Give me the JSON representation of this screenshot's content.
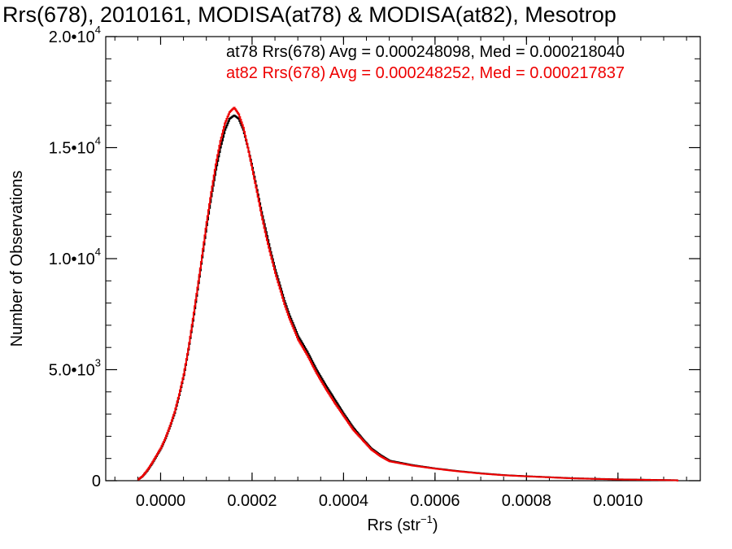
{
  "chart_data": {
    "type": "line",
    "step": true,
    "title": "Rrs(678), 2010161, MODISA(at78) & MODISA(at82), Mesotrop",
    "xlabel_main": "Rrs (str",
    "xlabel_sup": "−1",
    "xlabel_close": ")",
    "ylabel": "Number of Observations",
    "xlim": [
      -0.00012,
      0.00118
    ],
    "ylim": [
      0,
      20000
    ],
    "grid": false,
    "x_ticks": [
      {
        "value": 0.0,
        "label": "0.0000"
      },
      {
        "value": 0.0002,
        "label": "0.0002"
      },
      {
        "value": 0.0004,
        "label": "0.0004"
      },
      {
        "value": 0.0006,
        "label": "0.0006"
      },
      {
        "value": 0.0008,
        "label": "0.0008"
      },
      {
        "value": 0.001,
        "label": "0.0010"
      }
    ],
    "y_ticks": [
      {
        "value": 0,
        "mant": "0",
        "exp": ""
      },
      {
        "value": 5000,
        "mant": "5.0•10",
        "exp": "3"
      },
      {
        "value": 10000,
        "mant": "1.0•10",
        "exp": "4"
      },
      {
        "value": 15000,
        "mant": "1.5•10",
        "exp": "4"
      },
      {
        "value": 20000,
        "mant": "2.0•10",
        "exp": "4"
      }
    ],
    "series": [
      {
        "name": "at78",
        "color": "#000000",
        "stats": "at78 Rrs(678) Avg = 0.000248098, Med = 0.000218040",
        "x": [
          -5e-05,
          -4e-05,
          -3e-05,
          -2e-05,
          -1e-05,
          0.0,
          1e-05,
          2e-05,
          3e-05,
          4e-05,
          5e-05,
          6e-05,
          7e-05,
          8e-05,
          9e-05,
          0.0001,
          0.00011,
          0.00012,
          0.00013,
          0.00014,
          0.00015,
          0.00016,
          0.00017,
          0.00018,
          0.00019,
          0.0002,
          0.00021,
          0.00022,
          0.00023,
          0.00024,
          0.00025,
          0.00026,
          0.00027,
          0.00028,
          0.00029,
          0.0003,
          0.00032,
          0.00034,
          0.00036,
          0.00038,
          0.0004,
          0.00042,
          0.00044,
          0.00046,
          0.00048,
          0.0005,
          0.00055,
          0.0006,
          0.00065,
          0.0007,
          0.00075,
          0.0008,
          0.0009,
          0.001,
          0.00113
        ],
        "y": [
          50,
          200,
          450,
          750,
          1100,
          1450,
          1900,
          2450,
          3050,
          3850,
          4750,
          5900,
          7200,
          8600,
          10050,
          11500,
          12800,
          14000,
          15000,
          15800,
          16300,
          16450,
          16300,
          15800,
          15000,
          14100,
          13100,
          12100,
          11200,
          10300,
          9500,
          8800,
          8100,
          7500,
          7000,
          6500,
          5800,
          5000,
          4300,
          3650,
          3000,
          2400,
          1900,
          1450,
          1150,
          900,
          700,
          550,
          430,
          330,
          250,
          200,
          110,
          60,
          20
        ]
      },
      {
        "name": "at82",
        "color": "#ee0000",
        "stats": "at82 Rrs(678) Avg = 0.000248252, Med = 0.000217837",
        "x": [
          -5e-05,
          -4e-05,
          -3e-05,
          -2e-05,
          -1e-05,
          0.0,
          1e-05,
          2e-05,
          3e-05,
          4e-05,
          5e-05,
          6e-05,
          7e-05,
          8e-05,
          9e-05,
          0.0001,
          0.00011,
          0.00012,
          0.00013,
          0.00014,
          0.00015,
          0.00016,
          0.00017,
          0.00018,
          0.00019,
          0.0002,
          0.00021,
          0.00022,
          0.00023,
          0.00024,
          0.00025,
          0.00026,
          0.00027,
          0.00028,
          0.00029,
          0.0003,
          0.00032,
          0.00034,
          0.00036,
          0.00038,
          0.0004,
          0.00042,
          0.00044,
          0.00046,
          0.00048,
          0.0005,
          0.00055,
          0.0006,
          0.00065,
          0.0007,
          0.00075,
          0.0008,
          0.0009,
          0.001,
          0.00113
        ],
        "y": [
          50,
          210,
          470,
          780,
          1130,
          1480,
          1930,
          2480,
          3100,
          3900,
          4800,
          5950,
          7300,
          8700,
          10150,
          11650,
          13000,
          14250,
          15300,
          16100,
          16600,
          16800,
          16500,
          15900,
          15000,
          14000,
          13000,
          11950,
          11000,
          10150,
          9350,
          8650,
          7950,
          7350,
          6850,
          6350,
          5650,
          4850,
          4150,
          3500,
          2900,
          2300,
          1850,
          1400,
          1100,
          870,
          680,
          540,
          420,
          320,
          245,
          195,
          105,
          55,
          18
        ]
      }
    ]
  }
}
